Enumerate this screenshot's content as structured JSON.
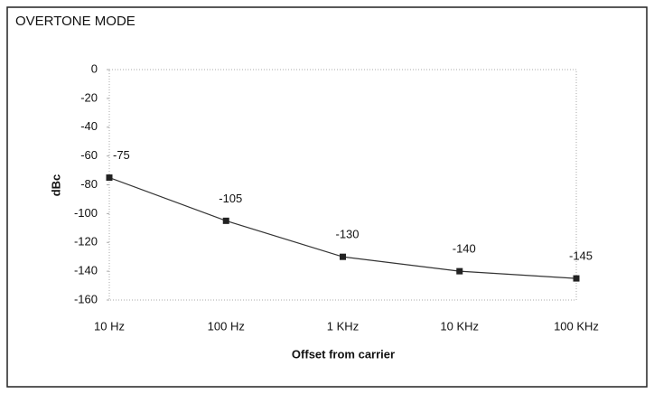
{
  "chart_data": {
    "type": "line",
    "title": "OVERTONE MODE",
    "x_label": "Offset from carrier",
    "y_label": "dBc",
    "categories": [
      "10 Hz",
      "100 Hz",
      "1 KHz",
      "10 KHz",
      "100 KHz"
    ],
    "values": [
      -75,
      -105,
      -130,
      -140,
      -145
    ],
    "color": "#333333",
    "ylim": [
      -160,
      0
    ],
    "yticks": [
      -160,
      -140,
      -120,
      -100,
      -80,
      -60,
      -40,
      -20,
      0
    ]
  }
}
